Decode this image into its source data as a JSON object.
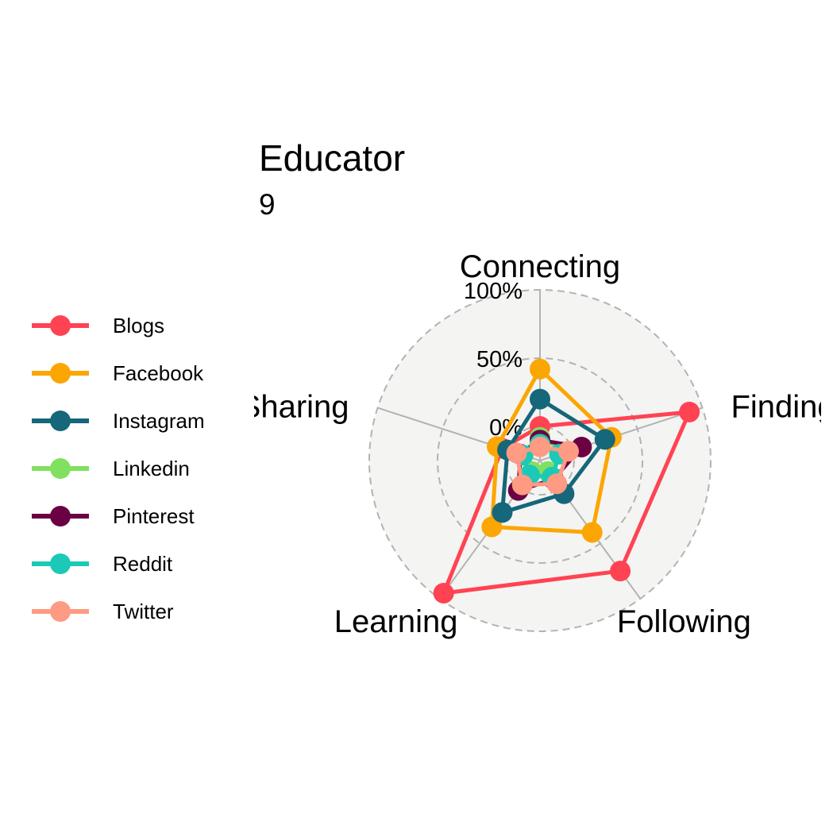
{
  "chart_data": {
    "type": "radar",
    "title": "Educator",
    "subtitle": "9",
    "axes": [
      "Connecting",
      "Finding",
      "Following",
      "Learning",
      "Sharing"
    ],
    "grid_labels": [
      "0%",
      "50%",
      "100%"
    ],
    "range": [
      -25,
      100
    ],
    "series": [
      {
        "name": "Blogs",
        "color": "#FF4353",
        "values": [
          0,
          90,
          75,
          95,
          4
        ]
      },
      {
        "name": "Facebook",
        "color": "#FBA603",
        "values": [
          42,
          30,
          40,
          35,
          8
        ]
      },
      {
        "name": "Instagram",
        "color": "#156779",
        "values": [
          20,
          25,
          5,
          22,
          0
        ]
      },
      {
        "name": "Linkedin",
        "color": "#80E060",
        "values": [
          -8,
          -5,
          -15,
          -15,
          -10
        ]
      },
      {
        "name": "Pinterest",
        "color": "#6B0043",
        "values": [
          -10,
          7,
          -8,
          2,
          -10
        ]
      },
      {
        "name": "Reddit",
        "color": "#1CC9B6",
        "values": [
          -13,
          -10,
          -10,
          -12,
          -12
        ]
      },
      {
        "name": "Twitter",
        "color": "#FF9A83",
        "values": [
          -15,
          -3,
          -4,
          -3,
          -7
        ]
      }
    ],
    "legend": "left"
  }
}
